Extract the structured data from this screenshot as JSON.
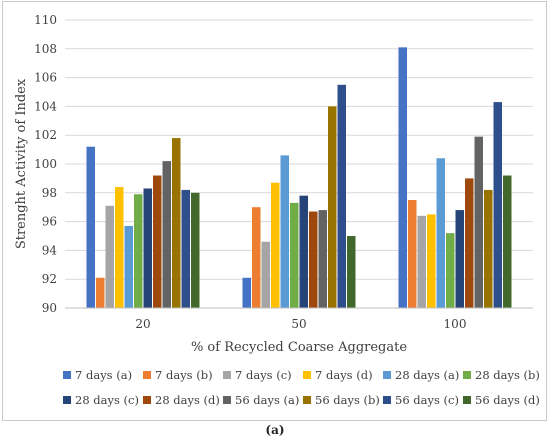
{
  "caption": "(a)",
  "chart_data": {
    "type": "bar",
    "categories": [
      "20",
      "50",
      "100"
    ],
    "xlabel": "% of Recycled Coarse Aggregate",
    "ylabel": "Strenght Activity of Index",
    "ylim": [
      90,
      110
    ],
    "yticks": [
      90,
      92,
      94,
      96,
      98,
      100,
      102,
      104,
      106,
      108,
      110
    ],
    "grid": true,
    "legend_position": "bottom",
    "series": [
      {
        "name": "7 days (a)",
        "color": "#4472c4",
        "values": [
          101.2,
          92.1,
          108.1
        ]
      },
      {
        "name": "7 days (b)",
        "color": "#ed7d31",
        "values": [
          92.1,
          97.0,
          97.5
        ]
      },
      {
        "name": "7 days (c)",
        "color": "#a5a5a5",
        "values": [
          97.1,
          94.6,
          96.4
        ]
      },
      {
        "name": "7 days (d)",
        "color": "#ffc000",
        "values": [
          98.4,
          98.7,
          96.5
        ]
      },
      {
        "name": "28 days (a)",
        "color": "#5b9bd5",
        "values": [
          95.7,
          100.6,
          100.4
        ]
      },
      {
        "name": "28 days (b)",
        "color": "#70ad47",
        "values": [
          97.9,
          97.3,
          95.2
        ]
      },
      {
        "name": "28 days (c)",
        "color": "#264478",
        "values": [
          98.3,
          97.8,
          96.8
        ]
      },
      {
        "name": "28 days (d)",
        "color": "#9e480e",
        "values": [
          99.2,
          96.7,
          99.0
        ]
      },
      {
        "name": "56 days (a)",
        "color": "#636363",
        "values": [
          100.2,
          96.8,
          101.9
        ]
      },
      {
        "name": "56 days (b)",
        "color": "#997300",
        "values": [
          101.8,
          104.0,
          98.2
        ]
      },
      {
        "name": "56 days (c)",
        "color": "#2e4f8c",
        "values": [
          98.2,
          105.5,
          104.3
        ]
      },
      {
        "name": "56 days (d)",
        "color": "#43682b",
        "values": [
          98.0,
          95.0,
          99.2
        ]
      }
    ]
  }
}
